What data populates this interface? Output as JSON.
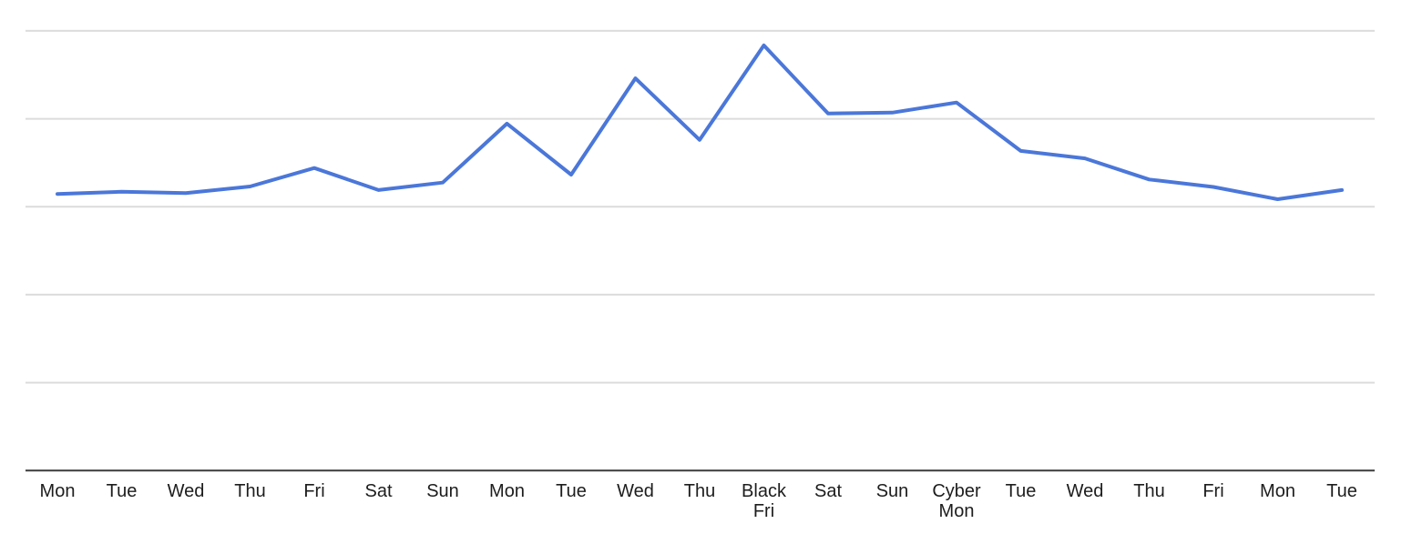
{
  "chart_data": {
    "type": "line",
    "title": "",
    "xlabel": "",
    "ylabel": "",
    "categories": [
      "Mon",
      "Tue",
      "Wed",
      "Thu",
      "Fri",
      "Sat",
      "Sun",
      "Mon",
      "Tue",
      "Wed",
      "Thu",
      "Black Fri",
      "Sat",
      "Sun",
      "Cyber Mon",
      "Tue",
      "Wed",
      "Thu",
      "Fri",
      "Mon",
      "Tue"
    ],
    "values": [
      62.9,
      63.4,
      63.1,
      64.6,
      68.8,
      63.8,
      65.5,
      78.9,
      67.3,
      89.2,
      75.2,
      96.7,
      81.2,
      81.4,
      83.7,
      72.7,
      71.0,
      66.2,
      64.5,
      61.7,
      63.8
    ],
    "ylim": [
      0,
      100
    ],
    "gridline_values": [
      20,
      40,
      60,
      80,
      100
    ],
    "grid": true,
    "legend": "none",
    "y_axis_labels_visible": false,
    "colors": {
      "line": "#4b77d9",
      "gridline": "#dcdcdc",
      "axis": "#3c3c3c",
      "label": "#1d1d1d",
      "background": "#ffffff"
    }
  }
}
